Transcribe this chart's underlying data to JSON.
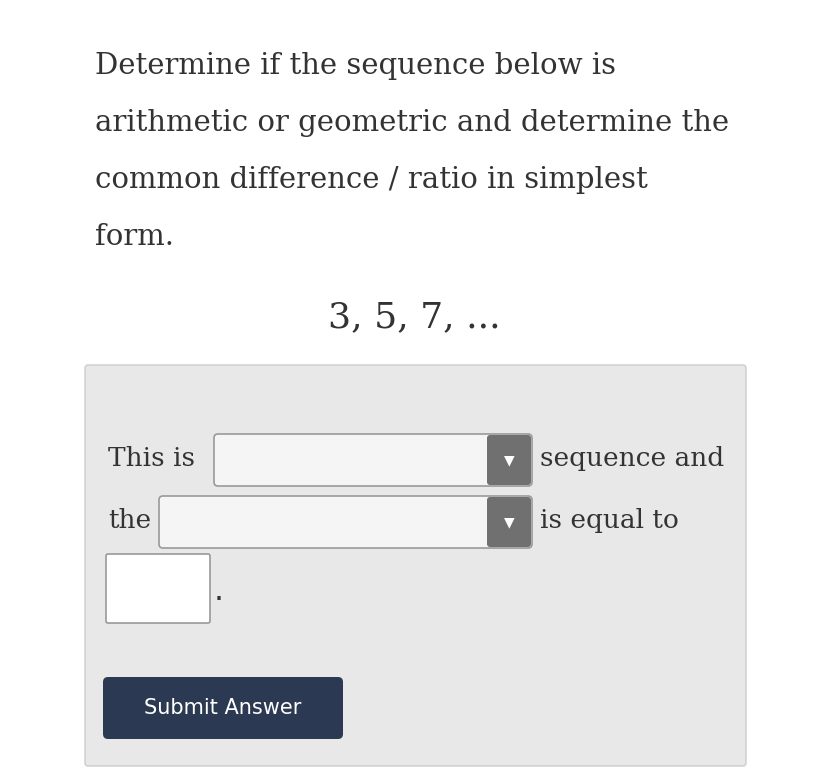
{
  "bg_color": "#ffffff",
  "panel_color": "#e8e8e8",
  "title_text_lines": [
    "Determine if the sequence below is",
    "arithmetic or geometric and determine the",
    "common difference / ratio in simplest",
    "form."
  ],
  "sequence_text": "3, 5, 7, ...",
  "this_is_label": "This is",
  "sequence_and_label": "sequence and",
  "the_label": "the",
  "is_equal_to_label": "is equal to",
  "submit_text": "Submit Answer",
  "submit_bg": "#2b3a52",
  "submit_fg": "#ffffff",
  "dropdown_bg_light": "#f5f5f5",
  "dropdown_bg_dark": "#d8d8d8",
  "dropdown_border": "#999999",
  "dropdown_arrow_bg": "#707070",
  "text_color": "#333333",
  "title_fontsize": 21,
  "seq_fontsize": 26,
  "body_fontsize": 19,
  "fig_w": 8.28,
  "fig_h": 7.73,
  "dpi": 100
}
